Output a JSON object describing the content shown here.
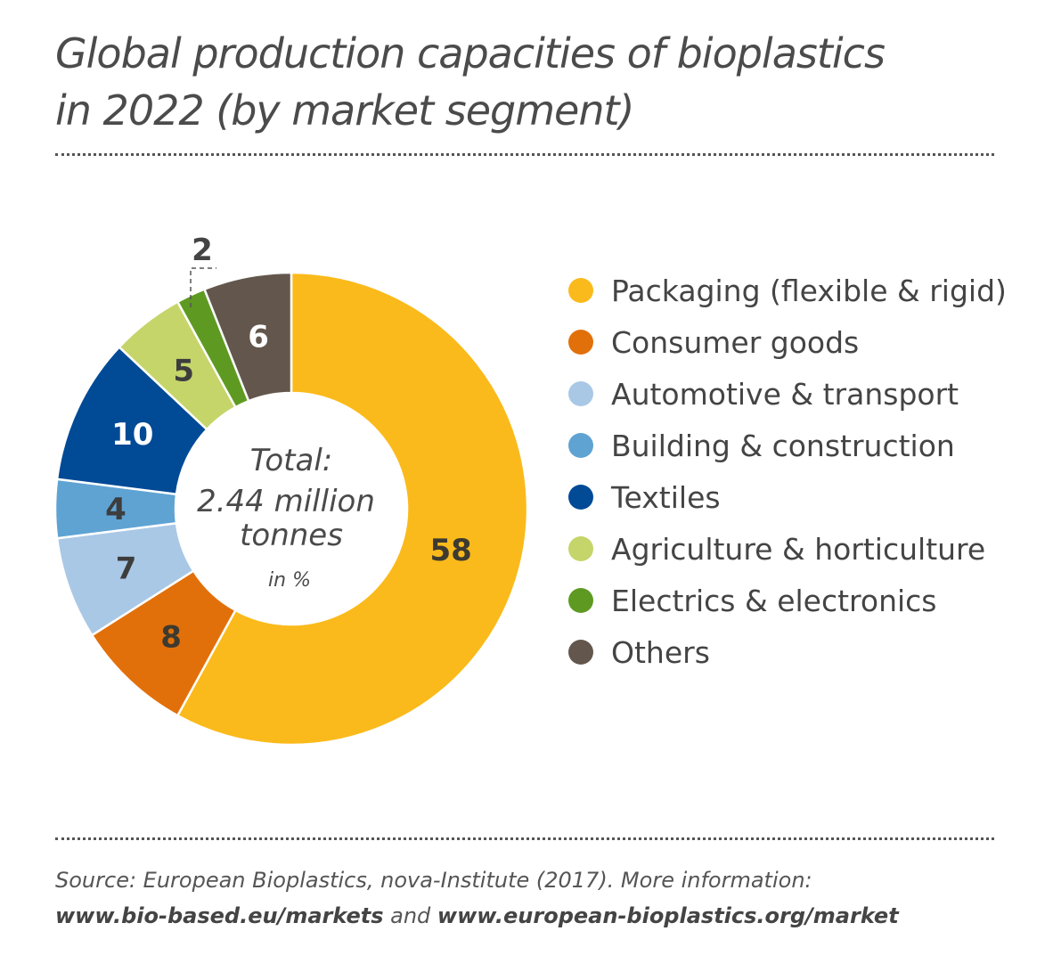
{
  "chart_data": {
    "type": "pie",
    "variant": "donut",
    "title_line1": "Global production capacities of bioplastics",
    "title_line2": "in 2022 (by market segment)",
    "center_label": {
      "line1": "Total:",
      "line2": "2.44 million",
      "line3": "tonnes",
      "unit": "in %"
    },
    "slices": [
      {
        "name": "Packaging (flexible & rigid)",
        "value": 58,
        "color": "#FBBA1B",
        "label_color": "#3d3a30"
      },
      {
        "name": "Consumer goods",
        "value": 8,
        "color": "#E2700A",
        "label_color": "#3d3a30"
      },
      {
        "name": "Automotive & transport",
        "value": 7,
        "color": "#A9C8E6",
        "label_color": "#3d3d3d"
      },
      {
        "name": "Building & construction",
        "value": 4,
        "color": "#5FA3D3",
        "label_color": "#3d3d3d"
      },
      {
        "name": "Textiles",
        "value": 10,
        "color": "#004A96",
        "label_color": "#ffffff"
      },
      {
        "name": "Agriculture & horticulture",
        "value": 5,
        "color": "#C5D56A",
        "label_color": "#3d3d3d"
      },
      {
        "name": "Electrics & electronics",
        "value": 2,
        "color": "#5E9A22",
        "label_color": "#3d3d3d"
      },
      {
        "name": "Others",
        "value": 6,
        "color": "#63574D",
        "label_color": "#ffffff"
      }
    ],
    "legend_position": "right"
  },
  "source": {
    "line1": "Source: European Bioplastics, nova-Institute (2017). More information:",
    "link1": "www.bio-based.eu/markets",
    "and": " and ",
    "link2": "www.european-bioplastics.org/market"
  }
}
